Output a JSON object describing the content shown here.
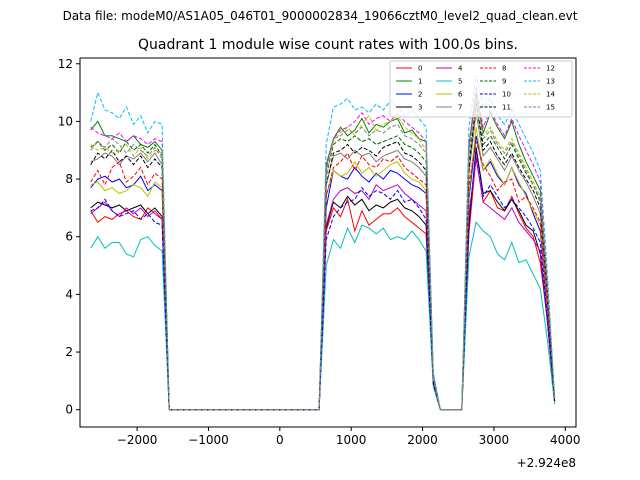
{
  "suptitle": "Data file: modeM0/AS1A05_046T01_9000002834_19066cztM0_level2_quad_clean.evt",
  "chart_data": {
    "type": "line",
    "title": "Quadrant 1 module wise count rates with 100.0s bins.",
    "xlabel": "",
    "ylabel": "",
    "offset_label": "+2.924e8",
    "xlim": [
      -2800,
      4150
    ],
    "ylim": [
      -0.6,
      12.2
    ],
    "x_ticks": [
      -2000,
      -1000,
      0,
      1000,
      2000,
      3000,
      4000
    ],
    "x_tick_labels": [
      "−2000",
      "−1000",
      "0",
      "1000",
      "2000",
      "3000",
      "4000"
    ],
    "y_ticks": [
      0,
      2,
      4,
      6,
      8,
      10,
      12
    ],
    "y_tick_labels": [
      "0",
      "2",
      "4",
      "6",
      "8",
      "10",
      "12"
    ],
    "grid": false,
    "legend_position": "top-right",
    "x": [
      -2650,
      -2550,
      -2450,
      -2350,
      -2250,
      -2150,
      -2050,
      -1950,
      -1850,
      -1750,
      -1650,
      -1550,
      -1450,
      -1350,
      -1250,
      -1150,
      -1050,
      -950,
      -850,
      -750,
      -650,
      -550,
      -450,
      -350,
      -250,
      -150,
      -50,
      50,
      150,
      250,
      350,
      450,
      550,
      650,
      750,
      850,
      950,
      1050,
      1150,
      1250,
      1350,
      1450,
      1550,
      1650,
      1750,
      1850,
      1950,
      2050,
      2150,
      2250,
      2350,
      2450,
      2550,
      2650,
      2750,
      2850,
      2950,
      3050,
      3150,
      3250,
      3350,
      3450,
      3550,
      3650,
      3750,
      3850
    ],
    "series": [
      {
        "name": "0",
        "color": "#ff0000",
        "dash": "solid",
        "values": [
          6.9,
          6.5,
          6.7,
          6.6,
          6.8,
          6.9,
          6.7,
          6.6,
          7.0,
          6.8,
          6.6,
          0,
          0,
          0,
          0,
          0,
          0,
          0,
          0,
          0,
          0,
          0,
          0,
          0,
          0,
          0,
          0,
          0,
          0,
          0,
          0,
          0,
          0,
          6.2,
          7.0,
          6.7,
          7.3,
          6.2,
          6.9,
          6.4,
          6.6,
          6.8,
          6.8,
          7.0,
          6.7,
          6.5,
          6.3,
          6.1,
          0.9,
          0,
          0,
          0,
          0,
          6.1,
          8.8,
          7.2,
          7.6,
          7.0,
          6.9,
          7.4,
          6.8,
          6.3,
          6.0,
          5.1,
          3.1,
          0.3
        ]
      },
      {
        "name": "1",
        "color": "#008000",
        "dash": "solid",
        "values": [
          9.7,
          10.0,
          9.5,
          9.5,
          9.4,
          9.3,
          9.5,
          9.2,
          9.1,
          9.3,
          9.0,
          0,
          0,
          0,
          0,
          0,
          0,
          0,
          0,
          0,
          0,
          0,
          0,
          0,
          0,
          0,
          0,
          0,
          0,
          0,
          0,
          0,
          0,
          8.5,
          9.4,
          9.8,
          9.5,
          9.7,
          10.1,
          9.6,
          9.9,
          9.8,
          10.0,
          10.1,
          9.6,
          9.7,
          9.4,
          9.3,
          1.2,
          0,
          0,
          0,
          0,
          9.2,
          11.0,
          9.6,
          10.3,
          9.8,
          9.4,
          10.0,
          9.2,
          8.6,
          8.1,
          7.6,
          4.2,
          0.4
        ]
      },
      {
        "name": "2",
        "color": "#0000ff",
        "dash": "solid",
        "values": [
          7.7,
          8.0,
          8.1,
          7.9,
          8.0,
          7.7,
          7.8,
          8.1,
          7.6,
          7.8,
          7.6,
          0,
          0,
          0,
          0,
          0,
          0,
          0,
          0,
          0,
          0,
          0,
          0,
          0,
          0,
          0,
          0,
          0,
          0,
          0,
          0,
          0,
          0,
          7.0,
          8.3,
          8.1,
          8.0,
          8.4,
          8.1,
          7.9,
          8.2,
          8.0,
          8.3,
          8.2,
          8.0,
          7.8,
          7.7,
          7.5,
          1.0,
          0,
          0,
          0,
          0,
          7.3,
          9.5,
          8.3,
          8.6,
          8.1,
          7.8,
          8.4,
          7.8,
          7.5,
          6.8,
          6.2,
          3.5,
          0.3
        ]
      },
      {
        "name": "3",
        "color": "#000000",
        "dash": "solid",
        "values": [
          7.0,
          7.2,
          7.1,
          7.0,
          7.1,
          6.9,
          7.0,
          7.1,
          6.8,
          7.0,
          6.7,
          0,
          0,
          0,
          0,
          0,
          0,
          0,
          0,
          0,
          0,
          0,
          0,
          0,
          0,
          0,
          0,
          0,
          0,
          0,
          0,
          0,
          0,
          6.3,
          7.2,
          7.0,
          7.4,
          7.1,
          7.3,
          6.9,
          7.1,
          7.0,
          7.2,
          7.3,
          7.0,
          6.9,
          6.7,
          6.4,
          0.9,
          0,
          0,
          0,
          0,
          6.4,
          9.1,
          7.5,
          7.6,
          7.2,
          6.9,
          7.3,
          6.9,
          6.4,
          6.2,
          5.4,
          3.0,
          0.3
        ]
      },
      {
        "name": "4",
        "color": "#bf00bf",
        "dash": "solid",
        "values": [
          6.8,
          7.0,
          7.2,
          6.9,
          6.7,
          7.0,
          6.8,
          7.0,
          6.7,
          6.9,
          6.6,
          0,
          0,
          0,
          0,
          0,
          0,
          0,
          0,
          0,
          0,
          0,
          0,
          0,
          0,
          0,
          0,
          0,
          0,
          0,
          0,
          0,
          0,
          6.4,
          7.3,
          7.6,
          7.7,
          7.5,
          7.6,
          7.3,
          7.8,
          7.6,
          7.7,
          7.8,
          7.5,
          7.3,
          7.1,
          6.9,
          0.9,
          0,
          0,
          0,
          0,
          6.8,
          8.7,
          7.2,
          7.0,
          6.8,
          6.6,
          7.0,
          6.5,
          6.2,
          5.9,
          5.5,
          3.1,
          0.3
        ]
      },
      {
        "name": "5",
        "color": "#00bfbf",
        "dash": "solid",
        "values": [
          5.6,
          6.0,
          5.6,
          5.8,
          5.8,
          5.4,
          5.3,
          5.9,
          6.0,
          5.7,
          5.5,
          0,
          0,
          0,
          0,
          0,
          0,
          0,
          0,
          0,
          0,
          0,
          0,
          0,
          0,
          0,
          0,
          0,
          0,
          0,
          0,
          0,
          0,
          5.0,
          5.9,
          5.6,
          6.3,
          5.8,
          6.4,
          6.3,
          6.1,
          6.3,
          5.9,
          6.0,
          5.9,
          6.2,
          5.9,
          5.5,
          0.8,
          0,
          0,
          0,
          0,
          5.3,
          6.5,
          6.2,
          6.0,
          5.4,
          5.2,
          5.8,
          5.1,
          5.2,
          4.7,
          4.2,
          2.4,
          0.2
        ]
      },
      {
        "name": "6",
        "color": "#bfbf00",
        "dash": "solid",
        "values": [
          7.8,
          7.9,
          7.6,
          7.7,
          7.5,
          7.6,
          7.8,
          7.7,
          7.4,
          7.9,
          7.7,
          0,
          0,
          0,
          0,
          0,
          0,
          0,
          0,
          0,
          0,
          0,
          0,
          0,
          0,
          0,
          0,
          0,
          0,
          0,
          0,
          0,
          0,
          7.4,
          8.3,
          8.1,
          8.2,
          8.6,
          8.2,
          8.4,
          8.1,
          8.3,
          8.5,
          8.6,
          8.2,
          8.0,
          7.9,
          7.6,
          1.0,
          0,
          0,
          0,
          0,
          7.5,
          9.8,
          8.3,
          8.7,
          8.2,
          7.8,
          8.4,
          7.9,
          7.4,
          6.9,
          6.4,
          3.6,
          0.3
        ]
      },
      {
        "name": "7",
        "color": "#808080",
        "dash": "solid",
        "values": [
          8.6,
          8.7,
          8.9,
          8.8,
          8.5,
          8.8,
          8.7,
          8.9,
          8.6,
          8.9,
          8.5,
          0,
          0,
          0,
          0,
          0,
          0,
          0,
          0,
          0,
          0,
          0,
          0,
          0,
          0,
          0,
          0,
          0,
          0,
          0,
          0,
          0,
          0,
          7.8,
          8.8,
          8.9,
          8.7,
          9.0,
          8.8,
          8.9,
          8.6,
          8.8,
          8.9,
          9.0,
          8.7,
          8.6,
          8.4,
          8.1,
          1.1,
          0,
          0,
          0,
          0,
          8.2,
          10.3,
          8.8,
          9.1,
          8.7,
          8.3,
          8.8,
          8.3,
          7.9,
          7.4,
          6.8,
          3.9,
          0.3
        ]
      },
      {
        "name": "8",
        "color": "#ff0000",
        "dash": "dashed",
        "values": [
          7.9,
          8.3,
          7.8,
          8.4,
          8.6,
          7.9,
          8.1,
          8.4,
          7.8,
          8.2,
          8.0,
          0,
          0,
          0,
          0,
          0,
          0,
          0,
          0,
          0,
          0,
          0,
          0,
          0,
          0,
          0,
          0,
          0,
          0,
          0,
          0,
          0,
          0,
          7.4,
          8.4,
          8.6,
          8.9,
          8.3,
          8.8,
          8.5,
          8.4,
          8.7,
          8.6,
          8.8,
          8.4,
          8.2,
          8.0,
          7.8,
          1.0,
          0,
          0,
          0,
          0,
          7.8,
          9.3,
          8.5,
          8.1,
          7.6,
          7.9,
          8.0,
          7.2,
          7.4,
          7.0,
          6.5,
          3.6,
          0.3
        ]
      },
      {
        "name": "9",
        "color": "#006400",
        "dash": "dashed",
        "values": [
          9.1,
          9.3,
          9.0,
          9.2,
          8.9,
          9.3,
          9.0,
          9.2,
          8.9,
          9.2,
          8.8,
          0,
          0,
          0,
          0,
          0,
          0,
          0,
          0,
          0,
          0,
          0,
          0,
          0,
          0,
          0,
          0,
          0,
          0,
          0,
          0,
          0,
          0,
          8.1,
          9.2,
          9.4,
          9.3,
          9.5,
          9.3,
          9.4,
          9.2,
          9.3,
          9.4,
          9.5,
          9.2,
          9.1,
          8.9,
          8.6,
          1.1,
          0,
          0,
          0,
          0,
          8.6,
          10.6,
          9.2,
          9.5,
          9.1,
          8.7,
          9.2,
          8.7,
          8.2,
          7.8,
          7.2,
          4.1,
          0.4
        ]
      },
      {
        "name": "10",
        "color": "#0000ff",
        "dash": "dashed",
        "values": [
          6.9,
          7.0,
          7.3,
          6.9,
          6.7,
          6.8,
          6.9,
          6.6,
          6.8,
          6.5,
          6.4,
          0,
          0,
          0,
          0,
          0,
          0,
          0,
          0,
          0,
          0,
          0,
          0,
          0,
          0,
          0,
          0,
          0,
          0,
          0,
          0,
          0,
          0,
          5.9,
          6.7,
          7.0,
          7.2,
          7.3,
          7.7,
          7.4,
          7.6,
          7.5,
          7.3,
          7.6,
          7.2,
          7.3,
          7.0,
          6.6,
          0.9,
          0,
          0,
          0,
          0,
          6.5,
          9.0,
          7.4,
          7.8,
          7.4,
          7.0,
          7.3,
          7.0,
          6.7,
          6.3,
          5.8,
          3.2,
          0.3
        ]
      },
      {
        "name": "11",
        "color": "#000000",
        "dash": "dashed",
        "values": [
          8.5,
          8.9,
          8.7,
          9.0,
          8.6,
          8.8,
          8.5,
          8.8,
          8.4,
          8.7,
          8.4,
          0,
          0,
          0,
          0,
          0,
          0,
          0,
          0,
          0,
          0,
          0,
          0,
          0,
          0,
          0,
          0,
          0,
          0,
          0,
          0,
          0,
          0,
          7.8,
          8.9,
          9.0,
          9.2,
          8.9,
          9.1,
          9.0,
          8.8,
          9.1,
          9.2,
          9.3,
          8.9,
          8.8,
          8.6,
          8.3,
          1.0,
          0,
          0,
          0,
          0,
          8.3,
          10.7,
          9.0,
          9.3,
          8.8,
          8.5,
          8.9,
          8.4,
          8.0,
          7.6,
          7.0,
          4.0,
          0.3
        ]
      },
      {
        "name": "12",
        "color": "#ff00ff",
        "dash": "dashed",
        "values": [
          9.8,
          9.6,
          9.5,
          9.4,
          9.6,
          9.3,
          9.5,
          9.4,
          9.2,
          9.4,
          9.3,
          0,
          0,
          0,
          0,
          0,
          0,
          0,
          0,
          0,
          0,
          0,
          0,
          0,
          0,
          0,
          0,
          0,
          0,
          0,
          0,
          0,
          0,
          8.4,
          9.4,
          9.7,
          9.8,
          10.0,
          10.3,
          9.9,
          10.1,
          10.2,
          10.0,
          10.3,
          10.0,
          9.8,
          9.6,
          9.3,
          1.2,
          0,
          0,
          0,
          0,
          9.1,
          11.2,
          9.8,
          10.4,
          9.9,
          9.5,
          10.1,
          9.5,
          9.0,
          8.5,
          7.9,
          4.5,
          0.4
        ]
      },
      {
        "name": "13",
        "color": "#00bfff",
        "dash": "dashed",
        "values": [
          10.0,
          11.0,
          10.4,
          10.3,
          10.1,
          10.5,
          9.9,
          10.2,
          9.6,
          10.0,
          9.9,
          0,
          0,
          0,
          0,
          0,
          0,
          0,
          0,
          0,
          0,
          0,
          0,
          0,
          0,
          0,
          0,
          0,
          0,
          0,
          0,
          0,
          0,
          9.2,
          10.5,
          10.6,
          10.8,
          10.4,
          10.5,
          10.3,
          10.6,
          10.4,
          10.7,
          10.5,
          10.2,
          10.4,
          10.1,
          9.8,
          1.3,
          0,
          0,
          0,
          0,
          9.8,
          11.6,
          10.5,
          10.8,
          10.2,
          9.9,
          10.4,
          9.9,
          9.4,
          8.9,
          8.3,
          4.7,
          0.4
        ]
      },
      {
        "name": "14",
        "color": "#bfbf00",
        "dash": "dashed",
        "values": [
          9.2,
          9.0,
          9.1,
          8.9,
          9.0,
          9.2,
          8.8,
          9.1,
          8.7,
          9.0,
          8.9,
          0,
          0,
          0,
          0,
          0,
          0,
          0,
          0,
          0,
          0,
          0,
          0,
          0,
          0,
          0,
          0,
          0,
          0,
          0,
          0,
          0,
          0,
          8.2,
          9.3,
          9.6,
          9.8,
          9.5,
          9.9,
          10.2,
          9.7,
          9.9,
          10.0,
          10.2,
          9.8,
          9.6,
          9.4,
          9.0,
          1.1,
          0,
          0,
          0,
          0,
          8.8,
          10.8,
          9.5,
          9.8,
          9.3,
          9.0,
          9.4,
          8.9,
          8.4,
          7.9,
          7.4,
          4.2,
          0.4
        ]
      },
      {
        "name": "15",
        "color": "#808080",
        "dash": "dashed",
        "values": [
          9.0,
          9.3,
          9.1,
          9.4,
          9.2,
          8.9,
          9.2,
          9.0,
          8.8,
          9.1,
          8.7,
          0,
          0,
          0,
          0,
          0,
          0,
          0,
          0,
          0,
          0,
          0,
          0,
          0,
          0,
          0,
          0,
          0,
          0,
          0,
          0,
          0,
          0,
          8.3,
          9.4,
          9.5,
          9.7,
          9.6,
          9.8,
          9.5,
          9.7,
          9.6,
          9.8,
          9.9,
          9.5,
          9.4,
          9.2,
          8.9,
          1.1,
          0,
          0,
          0,
          0,
          8.9,
          10.9,
          9.4,
          9.7,
          9.2,
          8.9,
          9.3,
          8.8,
          8.3,
          7.8,
          7.3,
          4.1,
          0.4
        ]
      }
    ]
  }
}
